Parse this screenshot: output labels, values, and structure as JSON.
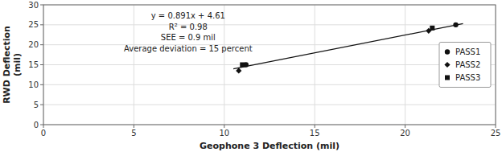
{
  "chart_data": {
    "type": "scatter",
    "xlabel": "Geophone 3 Deflection (mil)",
    "ylabel": "RWD Deflection\n(mil)",
    "xlim": [
      0,
      25
    ],
    "ylim": [
      0,
      30
    ],
    "xticks": [
      0,
      5,
      10,
      15,
      20,
      25
    ],
    "yticks": [
      0,
      5,
      10,
      15,
      20,
      25,
      30
    ],
    "grid": true,
    "legend": "right",
    "annotations": [
      "y = 0.891x + 4.61",
      "R² = 0.98",
      "SEE = 0.9 mil",
      "Average deviation = 15 percent"
    ],
    "series": [
      {
        "type": "line",
        "line_style": "solid",
        "color": "#111111",
        "x": [
          10.5,
          23.2
        ],
        "values": [
          13.9655,
          25.2812
        ]
      },
      {
        "name": "PASS1",
        "type": "scatter",
        "marker": "circle",
        "color": "#111111",
        "x": [
          11.2,
          22.8
        ],
        "values": [
          15.0,
          25.0
        ]
      },
      {
        "name": "PASS2",
        "type": "scatter",
        "marker": "diamond",
        "color": "#111111",
        "x": [
          10.8,
          21.3
        ],
        "values": [
          13.5,
          23.5
        ]
      },
      {
        "name": "PASS3",
        "type": "scatter",
        "marker": "square",
        "color": "#111111",
        "x": [
          11.0,
          21.5
        ],
        "values": [
          15.0,
          24.2
        ]
      }
    ]
  }
}
